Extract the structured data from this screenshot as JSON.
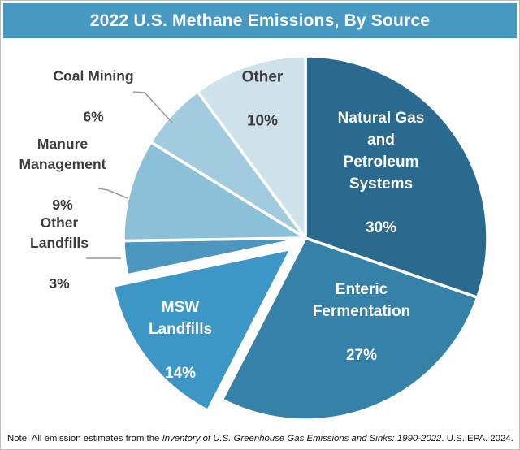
{
  "header": {
    "title": "2022 U.S. Methane Emissions, By Source"
  },
  "note": {
    "prefix": "Note: All emission estimates from the ",
    "italic": "Inventory of U.S. Greenhouse Gas Emissions and Sinks: 1990-2022",
    "suffix": ". U.S. EPA. 2024."
  },
  "colors": {
    "title_band": "#4799c4",
    "label_dark": "#3b3b3b",
    "inside_label": "#ffffff",
    "leader_line": "#999999",
    "slice_divider": "#ffffff"
  },
  "chart_data": {
    "type": "pie",
    "title": "2022 U.S. Methane Emissions, By Source",
    "start_angle_deg": 0,
    "direction": "clockwise",
    "legend": "none",
    "segments": [
      {
        "name": "Natural Gas and Petroleum Systems",
        "label": "Natural Gas\nand\nPetroleum\nSystems",
        "pct": 30,
        "pct_label": "30%",
        "color": "#2a6a8e",
        "label_placement": "inside",
        "exploded": false
      },
      {
        "name": "Enteric Fermentation",
        "label": "Enteric\nFermentation",
        "pct": 27,
        "pct_label": "27%",
        "color": "#3581a8",
        "label_placement": "inside",
        "exploded": false
      },
      {
        "name": "MSW Landfills",
        "label": "MSW\nLandfills",
        "pct": 14,
        "pct_label": "14%",
        "color": "#3d97c6",
        "label_placement": "inside",
        "exploded": true
      },
      {
        "name": "Other Landfills",
        "label": "Other\nLandfills",
        "pct": 3,
        "pct_label": "3%",
        "color": "#4c96c0",
        "label_placement": "outside",
        "exploded": false
      },
      {
        "name": "Manure Management",
        "label": "Manure\nManagement",
        "pct": 9,
        "pct_label": "9%",
        "color": "#8bc0d8",
        "label_placement": "outside",
        "exploded": false
      },
      {
        "name": "Coal Mining",
        "label": "Coal Mining",
        "pct": 6,
        "pct_label": "6%",
        "color": "#a3cbdf",
        "label_placement": "outside",
        "exploded": false
      },
      {
        "name": "Other",
        "label": "Other",
        "pct": 10,
        "pct_label": "10%",
        "color": "#cfe1eb",
        "label_placement": "inside-dark",
        "exploded": false
      }
    ]
  }
}
